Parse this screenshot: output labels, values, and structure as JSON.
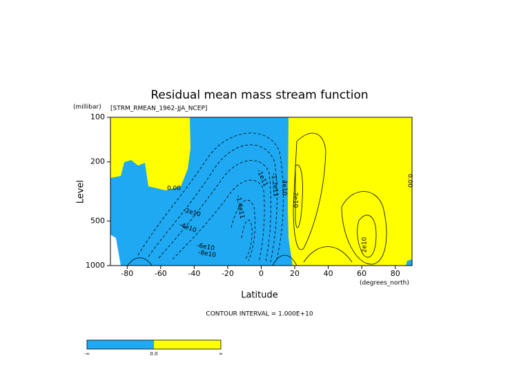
{
  "chart_data": {
    "type": "contour",
    "title": "Residual mean mass stream function",
    "subtitle": "[STRM_RMEAN_1962-JJA_NCEP]",
    "xlabel": "Latitude",
    "xunits": "(degrees_north)",
    "ylabel": "Level",
    "yunits": "(millibar)",
    "xlim": [
      -90,
      90
    ],
    "xticks": [
      -80,
      -60,
      -40,
      -20,
      0,
      20,
      40,
      60,
      80
    ],
    "ylim": [
      1000,
      100
    ],
    "yticks": [
      100,
      200,
      500,
      1000
    ],
    "ylog": true,
    "negative_color": "#1ea9f2",
    "positive_color": "#ffff00",
    "annotations": [
      "0.00",
      "0.00",
      "-2e10",
      "-4e10",
      "-6e10",
      "-8e10",
      "-1e11",
      "-1.4e11",
      "-1.2e11",
      "2e10",
      "2e10",
      "4e10"
    ],
    "contour_interval": "CONTOUR INTERVAL = 1.000E+10",
    "colorbar_labels": [
      "-∞",
      "0.0",
      "∞"
    ]
  }
}
